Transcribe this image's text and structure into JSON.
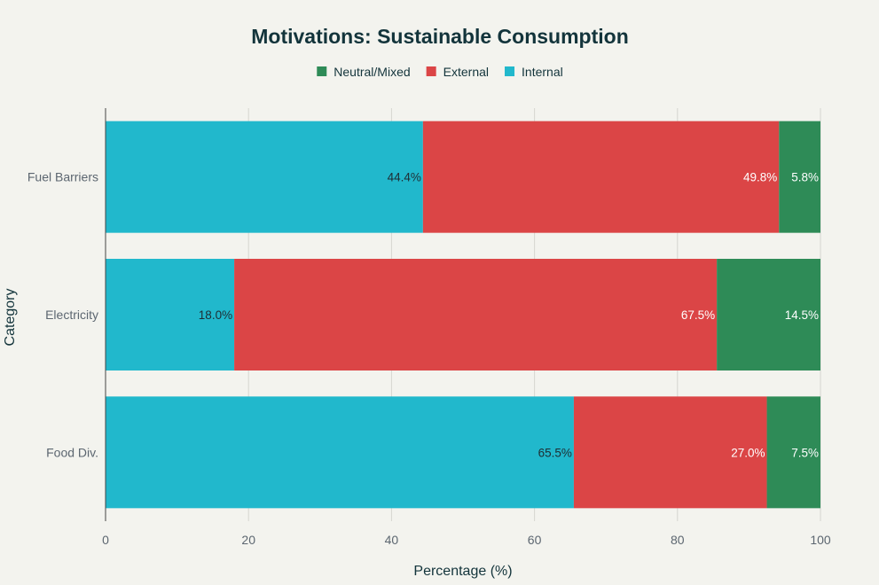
{
  "chart_data": {
    "type": "bar",
    "orientation": "horizontal",
    "stacked": true,
    "title": "Motivations: Sustainable Consumption",
    "xlabel": "Percentage (%)",
    "ylabel": "Category",
    "xlim": [
      0,
      100
    ],
    "xticks": [
      0,
      20,
      40,
      60,
      80,
      100
    ],
    "grid": true,
    "legend_position": "top-center",
    "categories": [
      "Fuel Barriers",
      "Electricity",
      "Food Div."
    ],
    "series": [
      {
        "name": "Internal",
        "color": "#21b8cc",
        "label_color": "#1f2d33",
        "values": [
          44.4,
          18.0,
          65.5
        ],
        "labels": [
          "44.4%",
          "18.0%",
          "65.5%"
        ]
      },
      {
        "name": "External",
        "color": "#db4546",
        "label_color": "#ffffff",
        "values": [
          49.8,
          67.5,
          27.0
        ],
        "labels": [
          "49.8%",
          "67.5%",
          "27.0%"
        ]
      },
      {
        "name": "Neutral/Mixed",
        "color": "#2e8b57",
        "label_color": "#ffffff",
        "values": [
          5.8,
          14.5,
          7.5
        ],
        "labels": [
          "5.8%",
          "14.5%",
          "7.5%"
        ]
      }
    ],
    "legend_order": [
      "Neutral/Mixed",
      "External",
      "Internal"
    ]
  }
}
